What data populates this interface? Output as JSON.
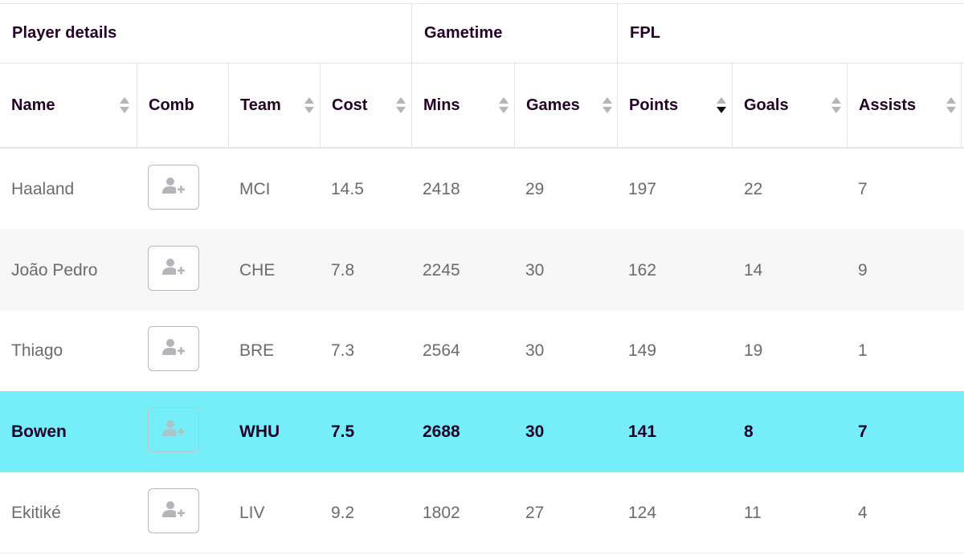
{
  "groups": {
    "player_details": "Player details",
    "gametime": "Gametime",
    "fpl": "FPL"
  },
  "columns": {
    "name": "Name",
    "comb": "Comb",
    "team": "Team",
    "cost": "Cost",
    "mins": "Mins",
    "games": "Games",
    "points": "Points",
    "goals": "Goals",
    "assists": "Assists"
  },
  "sort": {
    "column": "Points",
    "direction": "descending"
  },
  "icons": {
    "comb_button": "add-user-icon",
    "sort": "sort-arrows-icon"
  },
  "colors": {
    "highlight_row": "#76eef9",
    "text": "#240027",
    "muted_text": "#6b6b6b"
  },
  "rows": [
    {
      "name": "Haaland",
      "team": "MCI",
      "cost": "14.5",
      "mins": "2418",
      "games": "29",
      "points": "197",
      "goals": "22",
      "assists": "7"
    },
    {
      "name": "João Pedro",
      "team": "CHE",
      "cost": "7.8",
      "mins": "2245",
      "games": "30",
      "points": "162",
      "goals": "14",
      "assists": "9"
    },
    {
      "name": "Thiago",
      "team": "BRE",
      "cost": "7.3",
      "mins": "2564",
      "games": "30",
      "points": "149",
      "goals": "19",
      "assists": "1"
    },
    {
      "name": "Bowen",
      "team": "WHU",
      "cost": "7.5",
      "mins": "2688",
      "games": "30",
      "points": "141",
      "goals": "8",
      "assists": "7",
      "highlighted": true
    },
    {
      "name": "Ekitiké",
      "team": "LIV",
      "cost": "9.2",
      "mins": "1802",
      "games": "27",
      "points": "124",
      "goals": "11",
      "assists": "4"
    }
  ]
}
